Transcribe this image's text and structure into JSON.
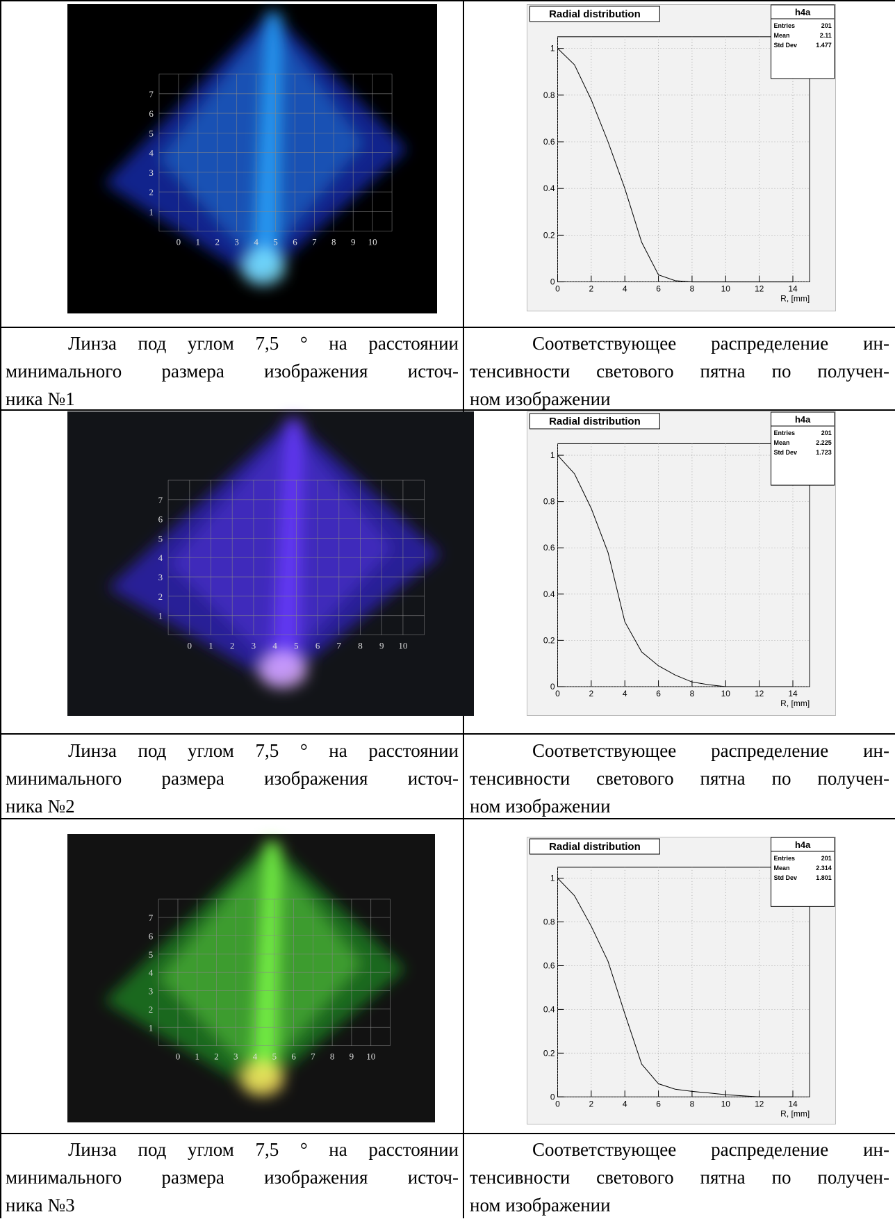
{
  "rows": [
    {
      "photo": {
        "x_labels": [
          0,
          1,
          2,
          3,
          4,
          5,
          6,
          7,
          8,
          9,
          10
        ],
        "y_labels": [
          1,
          2,
          3,
          4,
          5,
          6,
          7
        ]
      },
      "chart": {
        "type": "line",
        "title": "Radial distribution",
        "x_label": "R, [mm]",
        "stats": {
          "name": "h4a",
          "entries_label": "Entries",
          "entries": 201,
          "mean_label": "Mean",
          "mean": 2.11,
          "std_label": "Std Dev",
          "std": 1.477
        },
        "xlim": [
          0,
          15
        ],
        "xticks": [
          0,
          2,
          4,
          6,
          8,
          10,
          12,
          14
        ],
        "ylim": [
          0,
          1.05
        ],
        "yticks": [
          0,
          0.2,
          0.4,
          0.6,
          0.8,
          1
        ],
        "grid": true,
        "x": [
          0,
          1,
          2,
          3,
          4,
          5,
          6,
          7,
          8,
          9,
          10,
          11,
          12,
          13,
          14
        ],
        "values": [
          1,
          0.93,
          0.78,
          0.6,
          0.4,
          0.17,
          0.03,
          0.005,
          0,
          0,
          0,
          0,
          0,
          0,
          0
        ]
      },
      "caption_left": {
        "lines": [
          "Линза под углом 7,5 ° на расстоянии",
          "минимального размера изображения источ-",
          "ника №1"
        ]
      },
      "caption_right": {
        "lines": [
          "Соответствующее распределение ин-",
          "тенсивности светового пятна по получен-",
          "ном изображении"
        ]
      }
    },
    {
      "photo": {
        "x_labels": [
          0,
          1,
          2,
          3,
          4,
          5,
          6,
          7,
          8,
          9,
          10
        ],
        "y_labels": [
          1,
          2,
          3,
          4,
          5,
          6,
          7
        ]
      },
      "chart": {
        "type": "line",
        "title": "Radial distribution",
        "x_label": "R, [mm]",
        "stats": {
          "name": "h4a",
          "entries_label": "Entries",
          "entries": 201,
          "mean_label": "Mean",
          "mean": 2.225,
          "std_label": "Std Dev",
          "std": 1.723
        },
        "xlim": [
          0,
          15
        ],
        "xticks": [
          0,
          2,
          4,
          6,
          8,
          10,
          12,
          14
        ],
        "ylim": [
          0,
          1.05
        ],
        "yticks": [
          0,
          0.2,
          0.4,
          0.6,
          0.8,
          1
        ],
        "grid": true,
        "x": [
          0,
          1,
          2,
          3,
          4,
          5,
          6,
          7,
          8,
          9,
          10,
          11,
          12,
          13,
          14
        ],
        "values": [
          1,
          0.92,
          0.77,
          0.58,
          0.28,
          0.15,
          0.09,
          0.05,
          0.02,
          0.008,
          0,
          0,
          0,
          0,
          0
        ]
      },
      "caption_left": {
        "lines": [
          "Линза под углом 7,5 ° на расстоянии",
          "минимального размера изображения источ-",
          "ника №2"
        ]
      },
      "caption_right": {
        "lines": [
          "Соответствующее распределение ин-",
          "тенсивности светового пятна по получен-",
          "ном изображении"
        ]
      }
    },
    {
      "photo": {
        "x_labels": [
          0,
          1,
          2,
          3,
          4,
          5,
          6,
          7,
          8,
          9,
          10
        ],
        "y_labels": [
          1,
          2,
          3,
          4,
          5,
          6,
          7
        ]
      },
      "chart": {
        "type": "line",
        "title": "Radial distribution",
        "x_label": "R, [mm]",
        "stats": {
          "name": "h4a",
          "entries_label": "Entries",
          "entries": 201,
          "mean_label": "Mean",
          "mean": 2.314,
          "std_label": "Std Dev",
          "std": 1.801
        },
        "xlim": [
          0,
          15
        ],
        "xticks": [
          0,
          2,
          4,
          6,
          8,
          10,
          12,
          14
        ],
        "ylim": [
          0,
          1.05
        ],
        "yticks": [
          0,
          0.2,
          0.4,
          0.6,
          0.8,
          1
        ],
        "grid": true,
        "x": [
          0,
          1,
          2,
          3,
          4,
          5,
          6,
          7,
          8,
          9,
          10,
          11,
          12,
          13,
          14
        ],
        "values": [
          1,
          0.92,
          0.78,
          0.62,
          0.38,
          0.15,
          0.06,
          0.035,
          0.025,
          0.018,
          0.01,
          0.005,
          0,
          0,
          0
        ]
      },
      "caption_left": {
        "lines": [
          "Линза под углом 7,5 ° на расстоянии",
          "минимального размера изображения источ-",
          "ника №3"
        ]
      },
      "caption_right": {
        "lines": [
          "Соответствующее распределение ин-",
          "тенсивности светового пятна по получен-",
          "ном изображении"
        ]
      }
    }
  ]
}
